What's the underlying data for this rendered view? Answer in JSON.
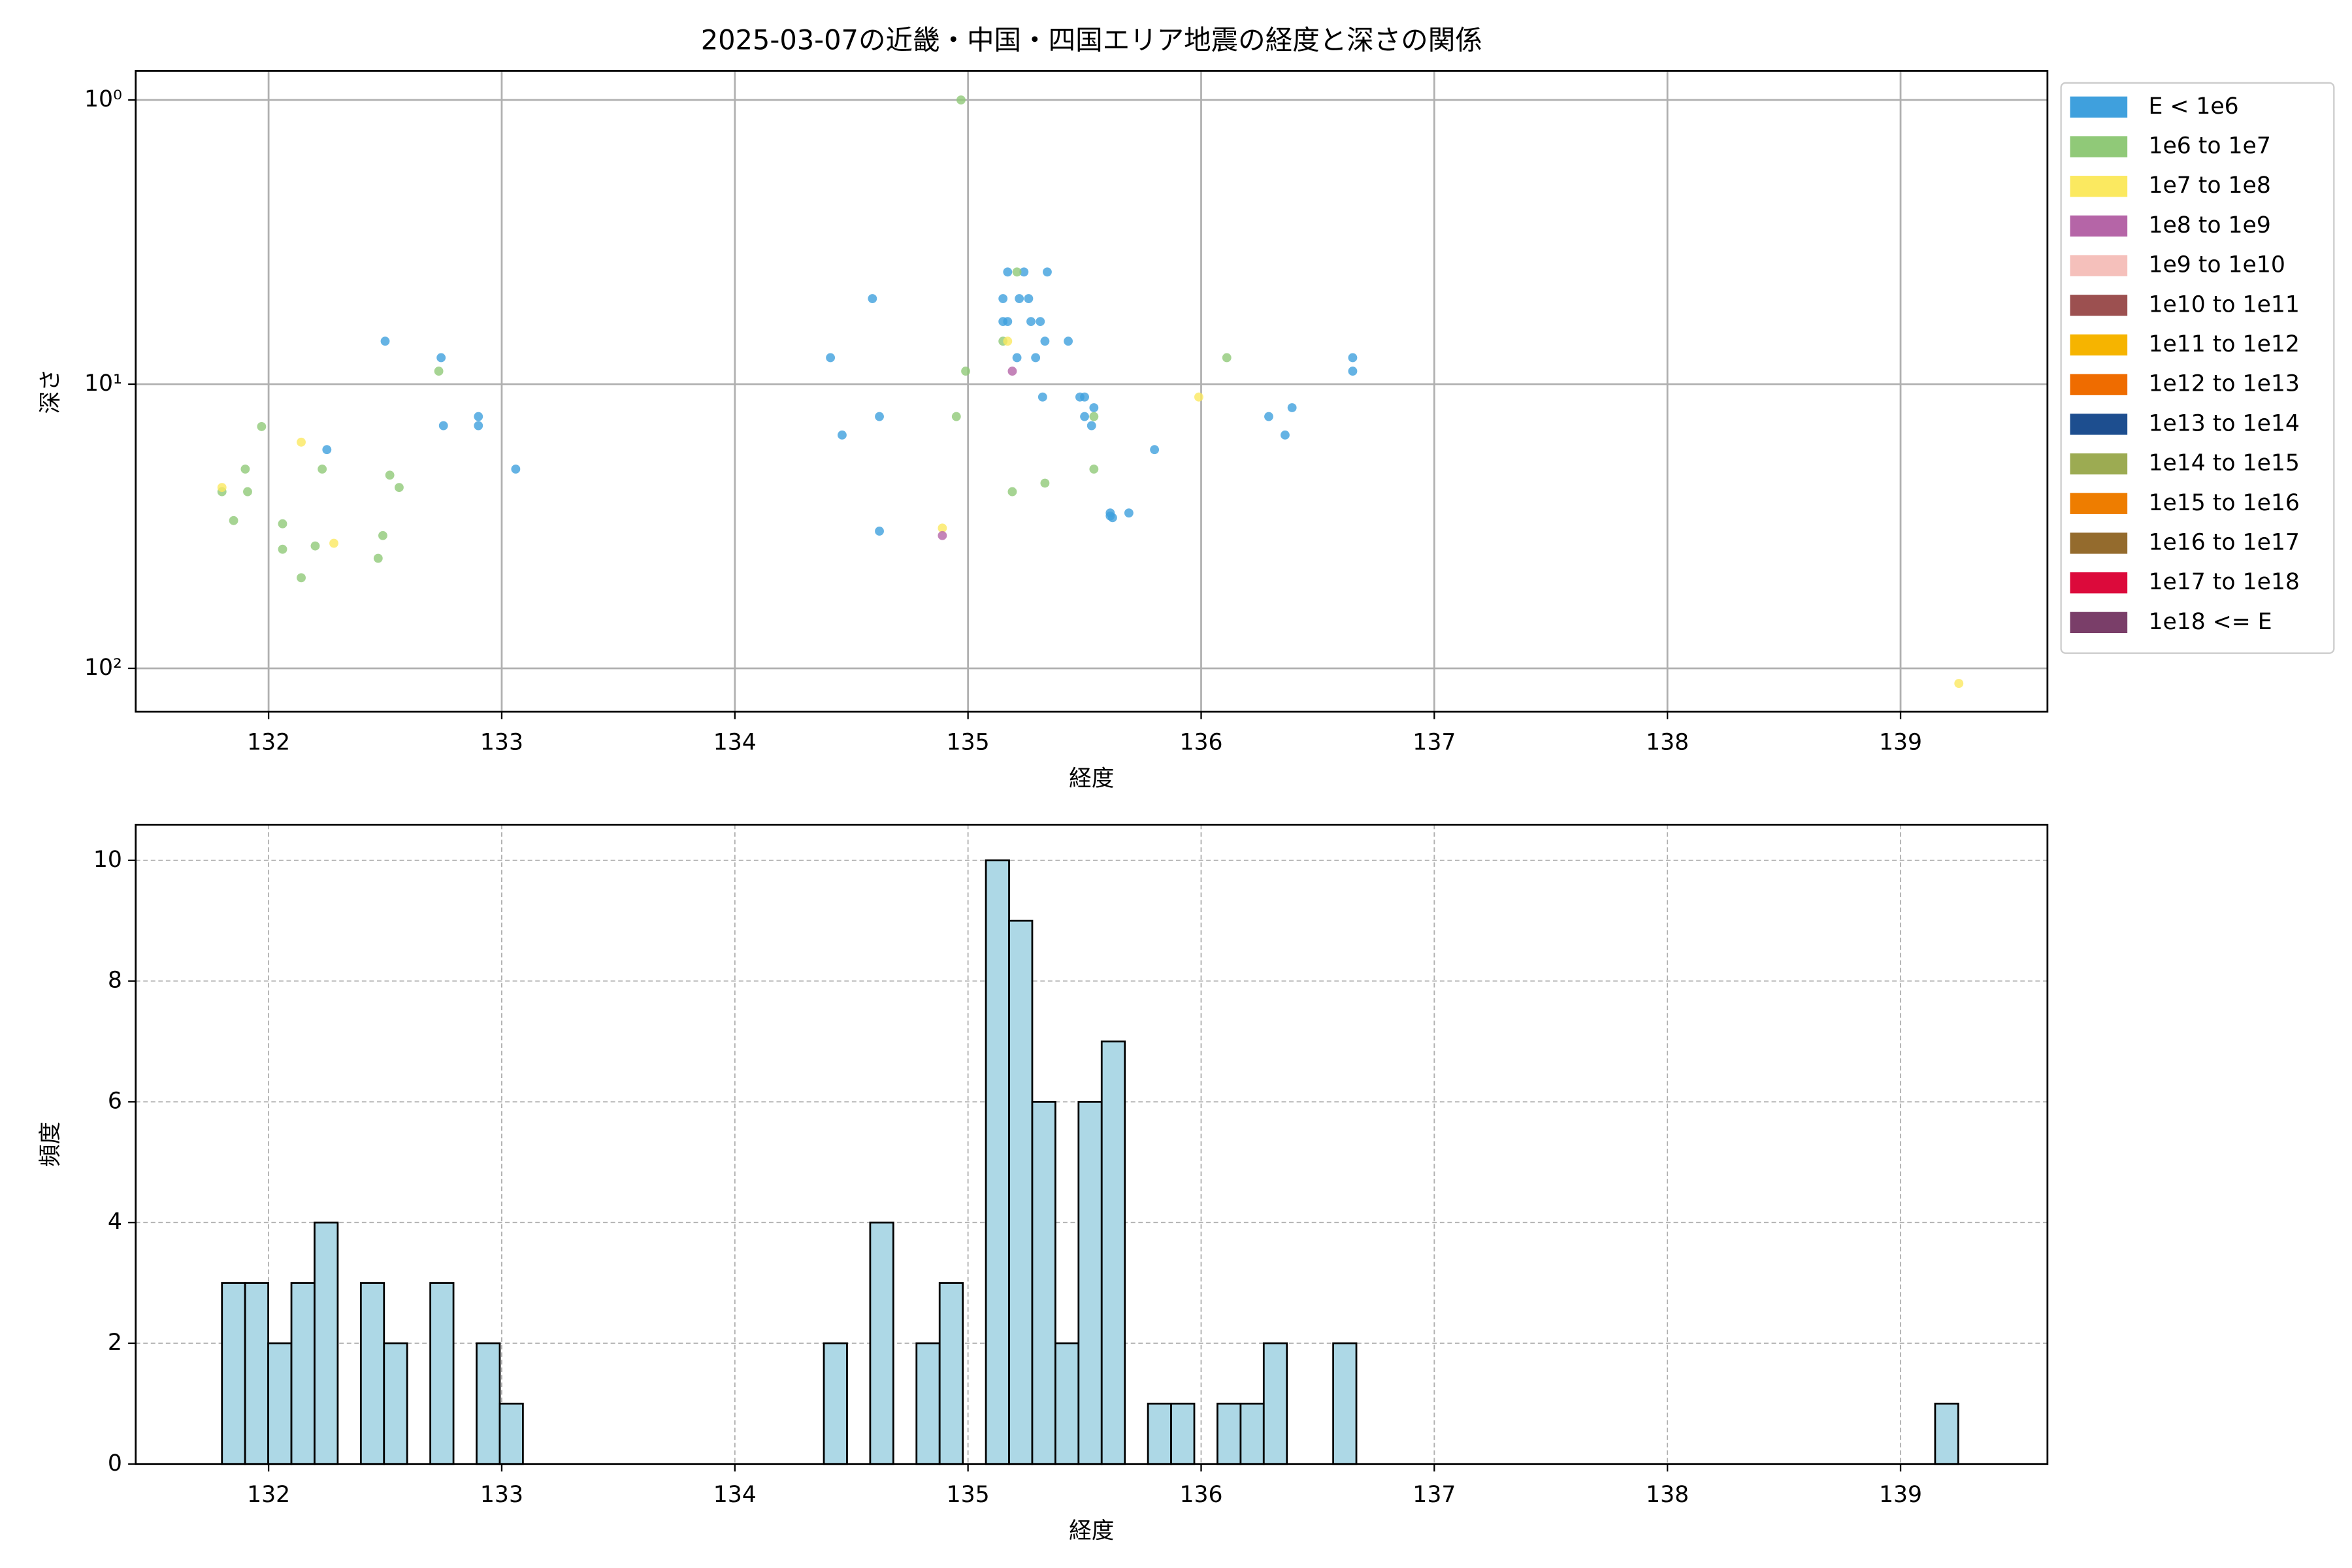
{
  "chart_data": [
    {
      "type": "scatter",
      "title": "2025-03-07の近畿・中国・四国エリア地震の経度と深さの関係",
      "x_label": "経度",
      "y_label": "深さ",
      "yscale": "log",
      "grid": true,
      "legend": "outside-right",
      "xlim": [
        131.43,
        139.63
      ],
      "xticks": [
        132,
        133,
        134,
        135,
        136,
        137,
        138,
        139
      ],
      "ylim": [
        142,
        0.79
      ],
      "yticks": [
        {
          "value": 1,
          "label": "10⁰"
        },
        {
          "value": 10,
          "label": "10¹"
        },
        {
          "value": 100,
          "label": "10²"
        }
      ],
      "series": [
        {
          "name": "E < 1e6",
          "color": "#3fa0dd",
          "x": [
            132.5,
            132.74,
            132.25,
            132.75,
            132.9,
            132.9,
            133.06,
            134.41,
            134.59,
            134.46,
            134.62,
            134.62,
            135.17,
            135.24,
            135.34,
            135.15,
            135.22,
            135.26,
            135.15,
            135.17,
            135.27,
            135.31,
            135.43,
            135.33,
            135.21,
            135.29,
            135.32,
            135.48,
            135.5,
            135.54,
            135.5,
            135.53,
            135.61,
            135.61,
            135.62,
            135.69,
            135.8,
            136.29,
            136.36,
            136.39,
            136.65,
            136.65
          ],
          "values": [
            7.06,
            8.07,
            17.0,
            14.0,
            13.0,
            14.0,
            19.9,
            8.07,
            5.0,
            15.1,
            13.0,
            32.9,
            4.03,
            4.03,
            4.03,
            5.0,
            5.0,
            5.0,
            6.02,
            6.02,
            6.02,
            6.02,
            7.06,
            7.06,
            8.07,
            8.07,
            11.1,
            11.1,
            11.1,
            12.1,
            13.0,
            14.0,
            28.4,
            29.1,
            29.5,
            28.4,
            17.0,
            13.0,
            15.1,
            12.1,
            8.07,
            9.0
          ]
        },
        {
          "name": "1e6 to 1e7",
          "color": "#90c978",
          "x": [
            131.97,
            131.9,
            131.8,
            131.91,
            131.85,
            132.06,
            132.06,
            132.14,
            132.2,
            132.23,
            132.52,
            132.56,
            132.49,
            132.47,
            132.73,
            134.97,
            134.99,
            134.95,
            135.15,
            135.19,
            135.21,
            135.33,
            135.54,
            135.54,
            136.11
          ],
          "values": [
            14.1,
            19.9,
            23.9,
            23.9,
            30.2,
            31.0,
            38.1,
            48.0,
            37.1,
            19.9,
            20.9,
            23.1,
            34.1,
            41.0,
            9.0,
            1.0,
            9.0,
            13.0,
            7.06,
            23.9,
            4.03,
            22.3,
            13.0,
            19.9,
            8.07
          ]
        },
        {
          "name": "1e7 to 1e8",
          "color": "#fbe960",
          "x": [
            131.8,
            132.14,
            132.28,
            134.89,
            135.17,
            135.99,
            139.25
          ],
          "values": [
            23.1,
            16.0,
            36.3,
            32.1,
            7.06,
            11.1,
            113
          ]
        },
        {
          "name": "1e8 to 1e9",
          "color": "#b565a7",
          "x": [
            134.89,
            135.19
          ],
          "values": [
            34.1,
            9.0
          ]
        },
        {
          "name": "1e9 to 1e10",
          "color": "#f5c0bb",
          "x": [],
          "values": []
        },
        {
          "name": "1e10 to 1e11",
          "color": "#9c5050",
          "x": [],
          "values": []
        },
        {
          "name": "1e11 to 1e12",
          "color": "#f6b400",
          "x": [],
          "values": []
        },
        {
          "name": "1e12 to 1e13",
          "color": "#ef6c00",
          "x": [],
          "values": []
        },
        {
          "name": "1e13 to 1e14",
          "color": "#1d4e8f",
          "x": [],
          "values": []
        },
        {
          "name": "1e14 to 1e15",
          "color": "#9cab52",
          "x": [],
          "values": []
        },
        {
          "name": "1e15 to 1e16",
          "color": "#ee7d00",
          "x": [],
          "values": []
        },
        {
          "name": "1e16 to 1e17",
          "color": "#946b2d",
          "x": [],
          "values": []
        },
        {
          "name": "1e17 to 1e18",
          "color": "#dc0a3b",
          "x": [],
          "values": []
        },
        {
          "name": "1e18 <= E",
          "color": "#7a3e69",
          "x": [],
          "values": []
        }
      ]
    },
    {
      "type": "histogram",
      "x_label": "経度",
      "y_label": "頻度",
      "color": "#add8e6",
      "edgecolor": "#000000",
      "grid": true,
      "xlim": [
        131.43,
        139.63
      ],
      "xticks": [
        132,
        133,
        134,
        135,
        136,
        137,
        138,
        139
      ],
      "ylim": [
        0,
        10.59
      ],
      "yticks": [
        0,
        2,
        4,
        6,
        8,
        10
      ],
      "bins": [
        131.8,
        131.8993,
        131.9986,
        132.0979,
        132.1972,
        132.2965,
        132.3958,
        132.4951,
        132.5944,
        132.6937,
        132.793,
        132.8923,
        132.9916,
        133.0909,
        133.1902,
        133.2895,
        133.3888,
        133.4881,
        133.5874,
        133.6867,
        133.786,
        133.8853,
        133.9846,
        134.0839,
        134.1832,
        134.2825,
        134.3818,
        134.4811,
        134.5804,
        134.6797,
        134.779,
        134.8783,
        134.9776,
        135.0769,
        135.1762,
        135.2755,
        135.3748,
        135.4741,
        135.5734,
        135.6727,
        135.772,
        135.8713,
        135.9706,
        136.0699,
        136.1692,
        136.2685,
        136.3678,
        136.4671,
        136.5664,
        136.6657,
        136.765,
        136.8643,
        136.9636,
        137.0629,
        137.1622,
        137.2615,
        137.3608,
        137.4601,
        137.5594,
        137.6587,
        137.758,
        137.8573,
        137.9566,
        138.0559,
        138.1552,
        138.2545,
        138.3538,
        138.4531,
        138.5524,
        138.6517,
        138.751,
        138.8503,
        138.9496,
        139.0489,
        139.1482,
        139.2475
      ],
      "values": [
        3,
        3,
        2,
        3,
        4,
        0,
        3,
        2,
        0,
        3,
        0,
        2,
        1,
        0,
        0,
        0,
        0,
        0,
        0,
        0,
        0,
        0,
        0,
        0,
        0,
        0,
        2,
        0,
        4,
        0,
        2,
        3,
        0,
        10,
        9,
        6,
        2,
        6,
        7,
        0,
        1,
        1,
        0,
        1,
        1,
        2,
        0,
        0,
        2,
        0,
        0,
        0,
        0,
        0,
        0,
        0,
        0,
        0,
        0,
        0,
        0,
        0,
        0,
        0,
        0,
        0,
        0,
        0,
        0,
        0,
        0,
        0,
        0,
        0,
        1
      ]
    }
  ]
}
